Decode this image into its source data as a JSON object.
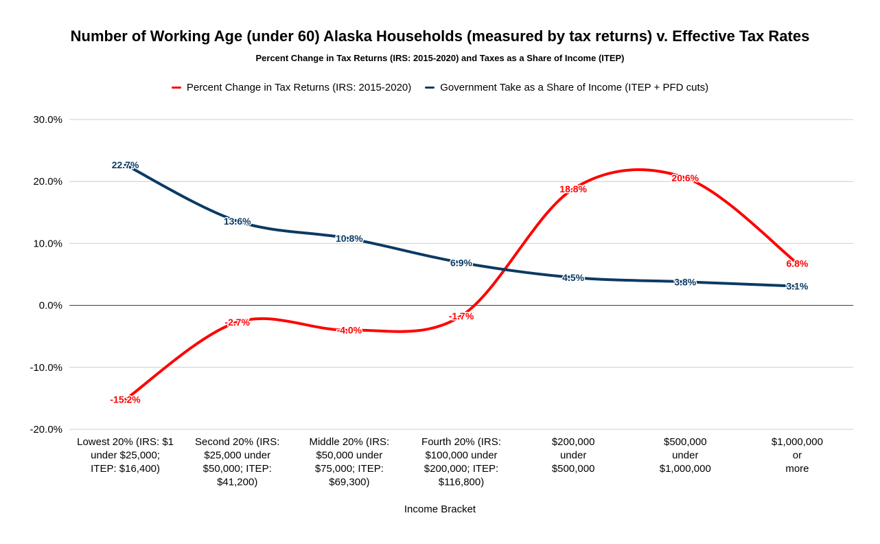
{
  "chart_data": {
    "type": "line",
    "title": "Number of Working Age (under 60) Alaska Households (measured by tax returns) v. Effective Tax Rates",
    "subtitle": "Percent Change in Tax Returns (IRS: 2015-2020) and Taxes as a Share of Income (ITEP)",
    "xlabel": "Income Bracket",
    "ylabel": "",
    "ylim": [
      -20,
      30
    ],
    "yticks": [
      "30.0%",
      "20.0%",
      "10.0%",
      "0.0%",
      "-10.0%",
      "-20.0%"
    ],
    "ytick_values": [
      30,
      20,
      10,
      0,
      -10,
      -20
    ],
    "grid": true,
    "legend_position": "top",
    "categories": [
      [
        "Lowest 20% (IRS: $1",
        "under $25,000;",
        "ITEP: $16,400)"
      ],
      [
        "Second 20% (IRS:",
        "$25,000 under",
        "$50,000; ITEP:",
        "$41,200)"
      ],
      [
        "Middle 20% (IRS:",
        "$50,000 under",
        "$75,000; ITEP:",
        "$69,300)"
      ],
      [
        "Fourth 20% (IRS:",
        "$100,000 under",
        "$200,000; ITEP:",
        "$116,800)"
      ],
      [
        "$200,000",
        "under",
        "$500,000"
      ],
      [
        "$500,000",
        "under",
        "$1,000,000"
      ],
      [
        "$1,000,000",
        "or",
        "more"
      ]
    ],
    "series": [
      {
        "name": "Percent Change in Tax Returns (IRS: 2015-2020)",
        "color": "#ff0000",
        "values": [
          -15.2,
          -2.7,
          -4.0,
          -1.7,
          18.8,
          20.6,
          6.8
        ],
        "labels": [
          "-15.2%",
          "-2.7%",
          "-4.0%",
          "-1.7%",
          "18.8%",
          "20.6%",
          "6.8%"
        ]
      },
      {
        "name": "Government Take as a Share of Income (ITEP + PFD cuts)",
        "color": "#0b3a63",
        "values": [
          22.7,
          13.6,
          10.8,
          6.9,
          4.5,
          3.8,
          3.1
        ],
        "labels": [
          "22.7%",
          "13.6%",
          "10.8%",
          "6.9%",
          "4.5%",
          "3.8%",
          "3.1%"
        ]
      }
    ]
  }
}
